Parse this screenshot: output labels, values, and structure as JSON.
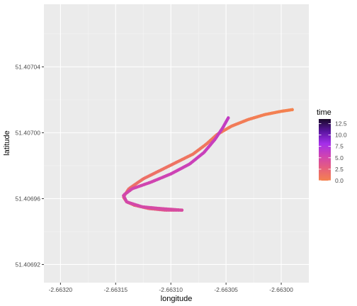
{
  "chart_data": {
    "type": "scatter",
    "xlabel": "longitude",
    "ylabel": "latitude",
    "xlim": [
      -2.663215,
      -2.662975
    ],
    "ylim": [
      51.406909,
      51.407078
    ],
    "x_ticks": [
      -2.6632,
      -2.66315,
      -2.6631,
      -2.66305,
      -2.663
    ],
    "x_tick_labels": [
      "-2.66320",
      "-2.66315",
      "-2.66310",
      "-2.66305",
      "-2.66300"
    ],
    "y_ticks": [
      51.40692,
      51.40696,
      51.407,
      51.40704
    ],
    "y_tick_labels": [
      "51.40692",
      "51.40696",
      "51.40700",
      "51.40704"
    ],
    "grid": true,
    "legend": {
      "title": "time",
      "position": "right",
      "breaks": [
        0.0,
        2.5,
        5.0,
        7.5,
        10.0,
        12.5
      ],
      "break_labels": [
        "0.0",
        "2.5",
        "5.0",
        "7.5",
        "10.0",
        "12.5"
      ],
      "range": [
        0,
        13.5
      ],
      "colors": [
        "#F4824F",
        "#E65F7C",
        "#CF43B2",
        "#A42EEA",
        "#5A15A0",
        "#1A0A2A"
      ]
    },
    "segments": [
      {
        "t_start": 0.0,
        "t_end": 1.8,
        "points": [
          [
            -2.66299,
            51.407014
          ],
          [
            -2.663,
            51.407013
          ],
          [
            -2.663015,
            51.407011
          ],
          [
            -2.66303,
            51.407008
          ],
          [
            -2.663045,
            51.407004
          ],
          [
            -2.663058,
            51.406999
          ],
          [
            -2.663068,
            51.406993
          ],
          [
            -2.66308,
            51.406987
          ],
          [
            -2.663095,
            51.406982
          ],
          [
            -2.66311,
            51.406977
          ],
          [
            -2.663125,
            51.406972
          ],
          [
            -2.663138,
            51.406966
          ],
          [
            -2.663143,
            51.406961
          ],
          [
            -2.66314,
            51.406958
          ],
          [
            -2.663133,
            51.406956
          ]
        ]
      },
      {
        "t_start": 1.8,
        "t_end": 4.5,
        "points": [
          [
            -2.663133,
            51.406956
          ],
          [
            -2.66312,
            51.406954
          ],
          [
            -2.663105,
            51.406953
          ],
          [
            -2.66309,
            51.406953
          ]
        ]
      },
      {
        "t_start": 4.5,
        "t_end": 6.2,
        "points": [
          [
            -2.66309,
            51.406953
          ],
          [
            -2.66311,
            51.406954
          ],
          [
            -2.663126,
            51.406955
          ],
          [
            -2.66314,
            51.406958
          ],
          [
            -2.663143,
            51.406962
          ],
          [
            -2.663135,
            51.406966
          ],
          [
            -2.663118,
            51.40697
          ],
          [
            -2.6631,
            51.406975
          ],
          [
            -2.663083,
            51.406981
          ],
          [
            -2.66307,
            51.406988
          ],
          [
            -2.66306,
            51.406996
          ],
          [
            -2.663053,
            51.407003
          ],
          [
            -2.663048,
            51.407009
          ]
        ]
      }
    ]
  }
}
